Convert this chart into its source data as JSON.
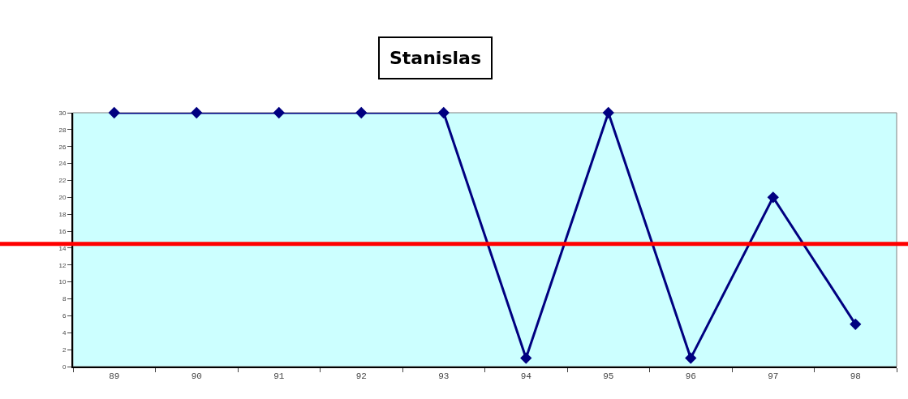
{
  "chart_data": {
    "type": "line",
    "title": "Stanislas",
    "categories": [
      "89",
      "90",
      "91",
      "92",
      "93",
      "94",
      "95",
      "96",
      "97",
      "98"
    ],
    "series": [
      {
        "color": "#000080",
        "values": [
          30,
          30,
          30,
          30,
          30,
          1,
          30,
          1,
          20,
          5
        ]
      }
    ],
    "ylim": [
      0,
      30
    ],
    "yticks": [
      0,
      2,
      4,
      6,
      8,
      10,
      12,
      14,
      16,
      18,
      20,
      22,
      24,
      26,
      28,
      30
    ],
    "ref_lines": [
      {
        "axis": "y",
        "value": 14.5,
        "color": "#ff0000"
      }
    ],
    "marker": "diamond",
    "line_style": "solid",
    "grid": false,
    "legend": false
  }
}
